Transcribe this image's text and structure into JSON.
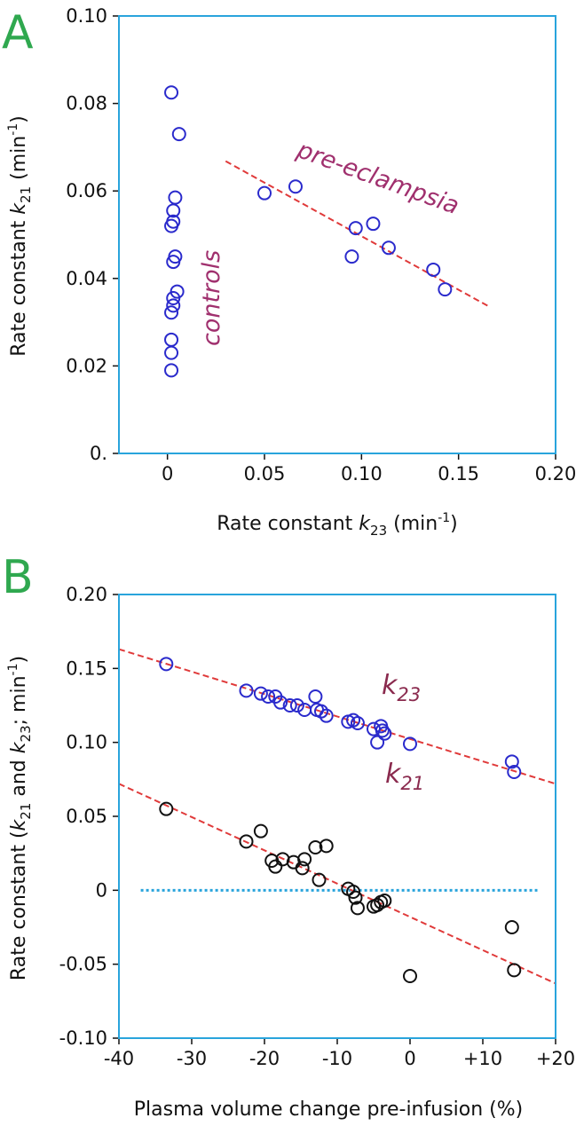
{
  "chart_data": [
    {
      "type": "scatter",
      "panel_label": "A",
      "xlabel": {
        "prefix": "Rate constant ",
        "sym": "k",
        "sub": "23",
        "suffix": " (min",
        "sup": "-1",
        "close": ")"
      },
      "ylabel": {
        "prefix": "Rate constant ",
        "sym": "k",
        "sub": "21",
        "suffix": " (min",
        "sup": "-1",
        "close": ")"
      },
      "xlim": [
        -0.025,
        0.2
      ],
      "ylim": [
        0.0,
        0.1
      ],
      "xticks": [
        0,
        0.05,
        0.1,
        0.15,
        0.2
      ],
      "xtick_labels": [
        "0",
        "0.05",
        "0.10",
        "0.15",
        "0.20"
      ],
      "yticks": [
        0,
        0.02,
        0.04,
        0.06,
        0.08,
        0.1
      ],
      "ytick_labels": [
        "0.",
        "0.02",
        "0.04",
        "0.06",
        "0.08",
        "0.10"
      ],
      "annotations": [
        "pre-eclampsia",
        "controls"
      ],
      "series": [
        {
          "name": "controls",
          "points": [
            [
              0.002,
              0.0825
            ],
            [
              0.006,
              0.073
            ],
            [
              0.004,
              0.0585
            ],
            [
              0.003,
              0.0555
            ],
            [
              0.003,
              0.053
            ],
            [
              0.002,
              0.052
            ],
            [
              0.004,
              0.045
            ],
            [
              0.003,
              0.0438
            ],
            [
              0.005,
              0.037
            ],
            [
              0.003,
              0.0355
            ],
            [
              0.003,
              0.0338
            ],
            [
              0.002,
              0.0322
            ],
            [
              0.002,
              0.026
            ],
            [
              0.002,
              0.023
            ],
            [
              0.002,
              0.019
            ]
          ]
        },
        {
          "name": "pre-eclampsia",
          "points": [
            [
              0.05,
              0.0595
            ],
            [
              0.066,
              0.061
            ],
            [
              0.097,
              0.0515
            ],
            [
              0.106,
              0.0525
            ],
            [
              0.095,
              0.045
            ],
            [
              0.114,
              0.047
            ],
            [
              0.137,
              0.042
            ],
            [
              0.143,
              0.0375
            ]
          ],
          "fit_line": [
            [
              0.03,
              0.0668
            ],
            [
              0.166,
              0.0335
            ]
          ]
        }
      ]
    },
    {
      "type": "scatter",
      "panel_label": "B",
      "xlabel": "Plasma volume change pre-infusion (%)",
      "ylabel": {
        "prefix": "Rate constant  (",
        "sym1": "k",
        "sub1": "21",
        "mid": " and ",
        "sym2": "k",
        "sub2": "23",
        "suffix": "; min",
        "sup": "-1",
        "close": ")"
      },
      "xlim": [
        -40,
        20
      ],
      "ylim": [
        -0.1,
        0.2
      ],
      "xticks": [
        -40,
        -30,
        -20,
        -10,
        0,
        10,
        20
      ],
      "xtick_labels": [
        "-40",
        "-30",
        "-20",
        "-10",
        "0",
        "+10",
        "+20"
      ],
      "yticks": [
        -0.1,
        -0.05,
        0,
        0.05,
        0.1,
        0.15,
        0.2
      ],
      "ytick_labels": [
        "-0.10",
        "-0.05",
        "0",
        "0.05",
        "0.10",
        "0.15",
        "0.20"
      ],
      "series": [
        {
          "name": "k23",
          "label_sym": "k",
          "label_sub": "23",
          "points": [
            [
              -33.5,
              0.153
            ],
            [
              -22.5,
              0.135
            ],
            [
              -20.5,
              0.133
            ],
            [
              -19.5,
              0.131
            ],
            [
              -18.5,
              0.131
            ],
            [
              -17.8,
              0.127
            ],
            [
              -16.5,
              0.125
            ],
            [
              -15.5,
              0.125
            ],
            [
              -14.5,
              0.122
            ],
            [
              -13.0,
              0.131
            ],
            [
              -12.8,
              0.122
            ],
            [
              -12.2,
              0.121
            ],
            [
              -11.5,
              0.118
            ],
            [
              -8.5,
              0.114
            ],
            [
              -7.8,
              0.115
            ],
            [
              -7.2,
              0.113
            ],
            [
              -5.0,
              0.109
            ],
            [
              -4.5,
              0.1
            ],
            [
              -4.0,
              0.111
            ],
            [
              -3.8,
              0.108
            ],
            [
              -3.5,
              0.106
            ],
            [
              0.0,
              0.099
            ],
            [
              14.0,
              0.087
            ],
            [
              14.3,
              0.08
            ]
          ],
          "fit_line": [
            [
              -40,
              0.163
            ],
            [
              20,
              0.072
            ]
          ]
        },
        {
          "name": "k21",
          "label_sym": "k",
          "label_sub": "21",
          "points": [
            [
              -33.5,
              0.055
            ],
            [
              -22.5,
              0.033
            ],
            [
              -20.5,
              0.04
            ],
            [
              -19.0,
              0.02
            ],
            [
              -18.5,
              0.016
            ],
            [
              -17.5,
              0.021
            ],
            [
              -16.0,
              0.019
            ],
            [
              -14.8,
              0.015
            ],
            [
              -14.5,
              0.021
            ],
            [
              -13.0,
              0.029
            ],
            [
              -12.5,
              0.007
            ],
            [
              -11.5,
              0.03
            ],
            [
              -8.5,
              0.001
            ],
            [
              -7.8,
              -0.001
            ],
            [
              -7.5,
              -0.005
            ],
            [
              -7.2,
              -0.012
            ],
            [
              -5.0,
              -0.011
            ],
            [
              -4.5,
              -0.01
            ],
            [
              -4.0,
              -0.008
            ],
            [
              -3.5,
              -0.007
            ],
            [
              0.0,
              -0.058
            ],
            [
              14.0,
              -0.025
            ],
            [
              14.3,
              -0.054
            ]
          ],
          "fit_line": [
            [
              -40,
              0.072
            ],
            [
              20,
              -0.063
            ]
          ],
          "zero_line": [
            [
              -37,
              0
            ],
            [
              17.5,
              0
            ]
          ]
        }
      ]
    }
  ]
}
